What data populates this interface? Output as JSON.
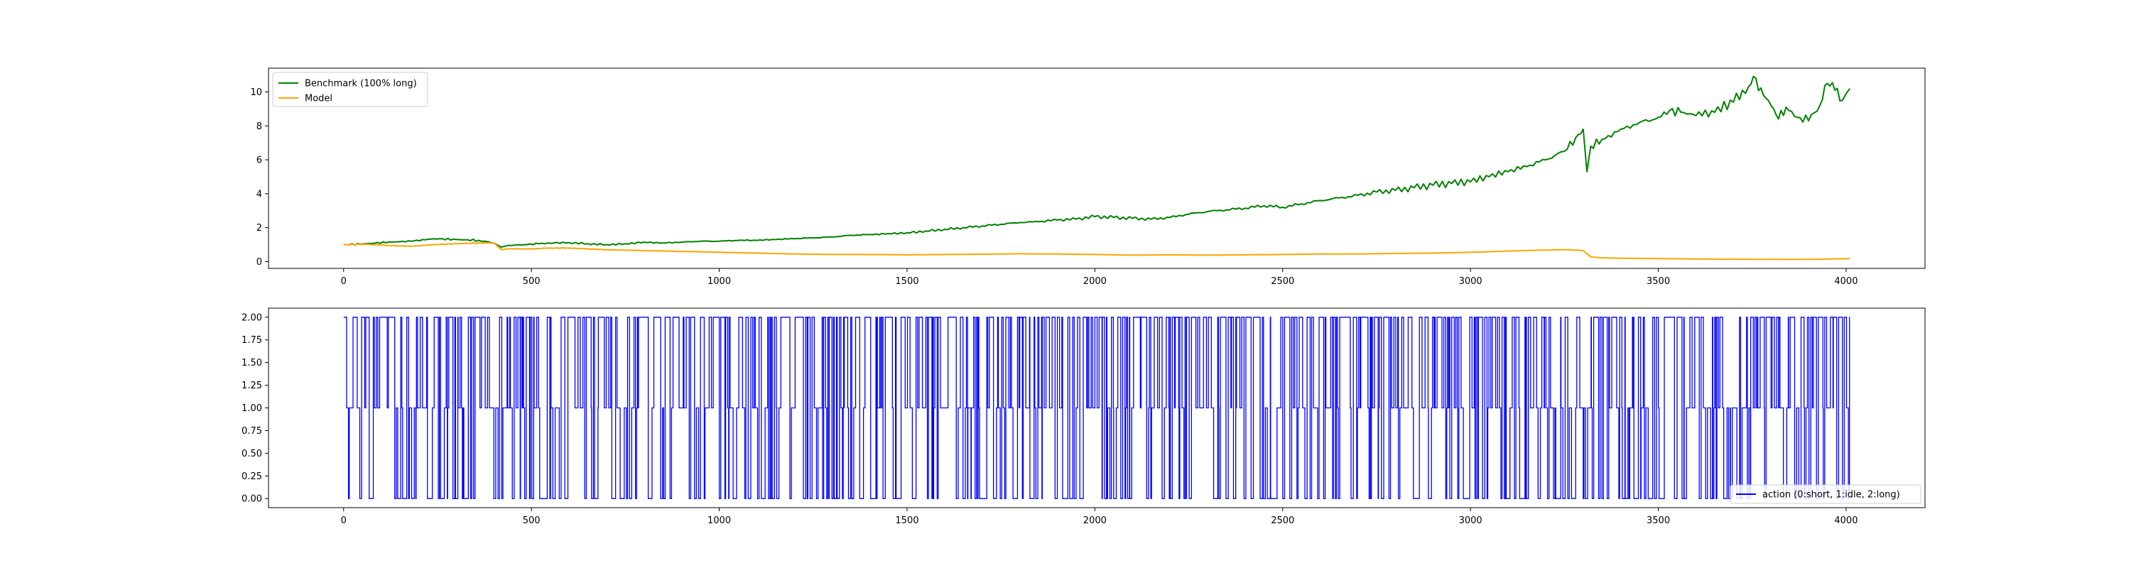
{
  "chart_data": [
    {
      "type": "line",
      "title": "",
      "xlabel": "",
      "ylabel": "",
      "xlim": [
        -200,
        4210
      ],
      "ylim": [
        -0.4,
        11.4
      ],
      "xticks": [
        0,
        500,
        1000,
        1500,
        2000,
        2500,
        3000,
        3500,
        4000
      ],
      "yticks": [
        0,
        2,
        4,
        6,
        8,
        10
      ],
      "grid": false,
      "legend_position": "top-left",
      "series": [
        {
          "name": "Benchmark (100% long)",
          "color": "#008000",
          "x": [
            0,
            60,
            120,
            180,
            240,
            300,
            360,
            400,
            420,
            440,
            480,
            520,
            560,
            600,
            650,
            700,
            750,
            800,
            850,
            900,
            950,
            1000,
            1050,
            1100,
            1150,
            1200,
            1250,
            1300,
            1350,
            1400,
            1450,
            1500,
            1550,
            1600,
            1650,
            1700,
            1750,
            1800,
            1850,
            1900,
            1950,
            2000,
            2050,
            2100,
            2150,
            2200,
            2250,
            2300,
            2350,
            2400,
            2450,
            2500,
            2550,
            2600,
            2650,
            2700,
            2750,
            2800,
            2850,
            2900,
            2950,
            3000,
            3050,
            3100,
            3150,
            3200,
            3250,
            3280,
            3300,
            3310,
            3320,
            3350,
            3400,
            3450,
            3500,
            3530,
            3560,
            3600,
            3650,
            3700,
            3740,
            3760,
            3780,
            3800,
            3820,
            3840,
            3870,
            3900,
            3930,
            3950,
            3970,
            3990,
            4000,
            4010
          ],
          "values": [
            1.0,
            1.05,
            1.15,
            1.2,
            1.35,
            1.3,
            1.25,
            1.1,
            0.85,
            0.95,
            1.0,
            1.05,
            1.1,
            1.12,
            1.05,
            1.0,
            1.05,
            1.15,
            1.1,
            1.15,
            1.2,
            1.2,
            1.25,
            1.25,
            1.3,
            1.35,
            1.4,
            1.45,
            1.55,
            1.6,
            1.65,
            1.7,
            1.8,
            1.9,
            2.0,
            2.1,
            2.2,
            2.3,
            2.35,
            2.45,
            2.5,
            2.65,
            2.6,
            2.55,
            2.5,
            2.6,
            2.8,
            2.95,
            3.05,
            3.15,
            3.3,
            3.2,
            3.4,
            3.6,
            3.75,
            3.9,
            4.1,
            4.2,
            4.35,
            4.5,
            4.6,
            4.7,
            5.0,
            5.3,
            5.6,
            6.0,
            6.5,
            7.3,
            7.8,
            5.3,
            6.8,
            7.2,
            7.8,
            8.2,
            8.5,
            8.9,
            8.8,
            8.6,
            8.8,
            9.4,
            10.3,
            10.8,
            9.8,
            9.2,
            8.4,
            9.1,
            8.5,
            8.3,
            9.2,
            10.5,
            10.1,
            9.5,
            9.9,
            10.2
          ],
          "thin_line": false
        },
        {
          "name": "Model",
          "color": "#ffa500",
          "x": [
            0,
            60,
            120,
            180,
            240,
            300,
            360,
            400,
            420,
            440,
            500,
            550,
            600,
            700,
            800,
            900,
            1000,
            1100,
            1200,
            1300,
            1400,
            1500,
            1600,
            1700,
            1800,
            1900,
            2000,
            2100,
            2200,
            2300,
            2400,
            2500,
            2600,
            2700,
            2800,
            2900,
            3000,
            3050,
            3100,
            3150,
            3200,
            3250,
            3280,
            3300,
            3320,
            3350,
            3400,
            3500,
            3600,
            3700,
            3800,
            3900,
            4000,
            4010
          ],
          "values": [
            1.0,
            1.02,
            0.95,
            0.9,
            1.0,
            1.05,
            1.1,
            1.1,
            0.7,
            0.75,
            0.75,
            0.8,
            0.8,
            0.7,
            0.65,
            0.6,
            0.55,
            0.5,
            0.45,
            0.42,
            0.42,
            0.4,
            0.42,
            0.44,
            0.46,
            0.45,
            0.42,
            0.38,
            0.4,
            0.38,
            0.4,
            0.42,
            0.45,
            0.45,
            0.48,
            0.5,
            0.55,
            0.58,
            0.62,
            0.65,
            0.68,
            0.7,
            0.68,
            0.65,
            0.28,
            0.22,
            0.2,
            0.18,
            0.15,
            0.14,
            0.13,
            0.13,
            0.17,
            0.17
          ]
        }
      ]
    },
    {
      "type": "line",
      "title": "",
      "xlabel": "",
      "ylabel": "",
      "xlim": [
        -200,
        4210
      ],
      "ylim": [
        -0.1,
        2.1
      ],
      "xticks": [
        0,
        500,
        1000,
        1500,
        2000,
        2500,
        3000,
        3500,
        4000
      ],
      "yticks": [
        0.0,
        0.25,
        0.5,
        0.75,
        1.0,
        1.25,
        1.5,
        1.75,
        2.0
      ],
      "ytick_labels": [
        "0.00",
        "0.25",
        "0.50",
        "0.75",
        "1.00",
        "1.25",
        "1.50",
        "1.75",
        "2.00"
      ],
      "grid": false,
      "legend_position": "bottom-right",
      "series": [
        {
          "name": "action (0:short, 1:idle, 2:long)",
          "color": "#0000ff",
          "x_start": 0,
          "x_end": 4010,
          "values_description": "discrete",
          "levels": [
            0,
            1,
            2
          ]
        }
      ]
    }
  ]
}
